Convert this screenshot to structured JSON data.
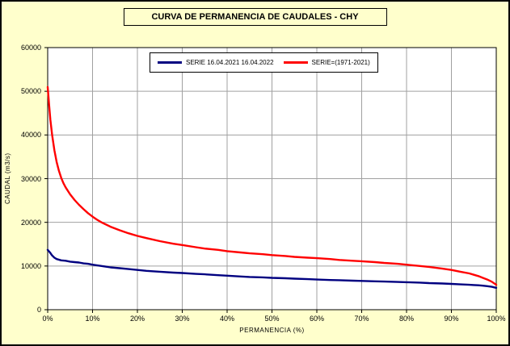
{
  "chart_data": {
    "type": "line",
    "title": "CURVA DE PERMANENCIA DE CAUDALES - CHY",
    "xlabel": "PERMANENCIA (%)",
    "ylabel": "CAUDAL (m3/s)",
    "xlim": [
      0,
      100
    ],
    "ylim": [
      0,
      60000
    ],
    "x_ticks": [
      0,
      10,
      20,
      30,
      40,
      50,
      60,
      70,
      80,
      90,
      100
    ],
    "x_tick_labels": [
      "0%",
      "10%",
      "20%",
      "30%",
      "40%",
      "50%",
      "60%",
      "70%",
      "80%",
      "90%",
      "100%"
    ],
    "y_ticks": [
      0,
      10000,
      20000,
      30000,
      40000,
      50000,
      60000
    ],
    "y_tick_labels": [
      "0",
      "10000",
      "20000",
      "30000",
      "40000",
      "50000",
      "60000"
    ],
    "grid": true,
    "legend_position": "top-center-inside",
    "background_color": "#FFFFCC",
    "plot_background_color": "#FFFFFF",
    "series": [
      {
        "name": "SERIE 16.04.2021 16.04.2022",
        "color": "#000080",
        "x": [
          0,
          0.5,
          1,
          1.5,
          2,
          3,
          4,
          5,
          6,
          7,
          8,
          9,
          10,
          12,
          14,
          16,
          18,
          20,
          22,
          25,
          28,
          30,
          33,
          35,
          38,
          40,
          43,
          45,
          48,
          50,
          53,
          55,
          58,
          60,
          63,
          65,
          68,
          70,
          73,
          75,
          78,
          80,
          83,
          85,
          88,
          90,
          92,
          94,
          95,
          96,
          97,
          98,
          99,
          100
        ],
        "y": [
          13700,
          13100,
          12400,
          11900,
          11600,
          11300,
          11200,
          11000,
          10900,
          10800,
          10600,
          10500,
          10300,
          10000,
          9700,
          9500,
          9300,
          9100,
          8900,
          8700,
          8500,
          8400,
          8200,
          8100,
          7900,
          7800,
          7600,
          7500,
          7400,
          7300,
          7200,
          7100,
          7000,
          6900,
          6800,
          6750,
          6650,
          6600,
          6500,
          6450,
          6350,
          6300,
          6200,
          6100,
          6000,
          5900,
          5800,
          5700,
          5650,
          5600,
          5500,
          5400,
          5250,
          5000
        ]
      },
      {
        "name": "SERIE=(1971-2021)",
        "color": "#FF0000",
        "x": [
          0,
          0.3,
          0.6,
          1,
          1.5,
          2,
          2.5,
          3,
          3.5,
          4,
          5,
          6,
          7,
          8,
          9,
          10,
          11,
          12,
          14,
          16,
          18,
          20,
          22,
          25,
          28,
          30,
          33,
          35,
          38,
          40,
          43,
          45,
          48,
          50,
          53,
          55,
          58,
          60,
          63,
          65,
          68,
          70,
          73,
          75,
          78,
          80,
          83,
          85,
          88,
          90,
          92,
          94,
          95,
          96,
          97,
          98,
          99,
          100
        ],
        "y": [
          51000,
          47000,
          43500,
          40000,
          36500,
          33800,
          31800,
          30200,
          29000,
          28000,
          26400,
          25100,
          24000,
          23000,
          22100,
          21300,
          20600,
          20000,
          19000,
          18200,
          17500,
          16900,
          16400,
          15700,
          15100,
          14800,
          14300,
          14000,
          13700,
          13400,
          13100,
          12900,
          12700,
          12500,
          12300,
          12100,
          11900,
          11800,
          11600,
          11400,
          11200,
          11100,
          10900,
          10700,
          10500,
          10300,
          10000,
          9800,
          9400,
          9100,
          8700,
          8300,
          8000,
          7700,
          7300,
          6900,
          6400,
          5700
        ]
      }
    ]
  }
}
